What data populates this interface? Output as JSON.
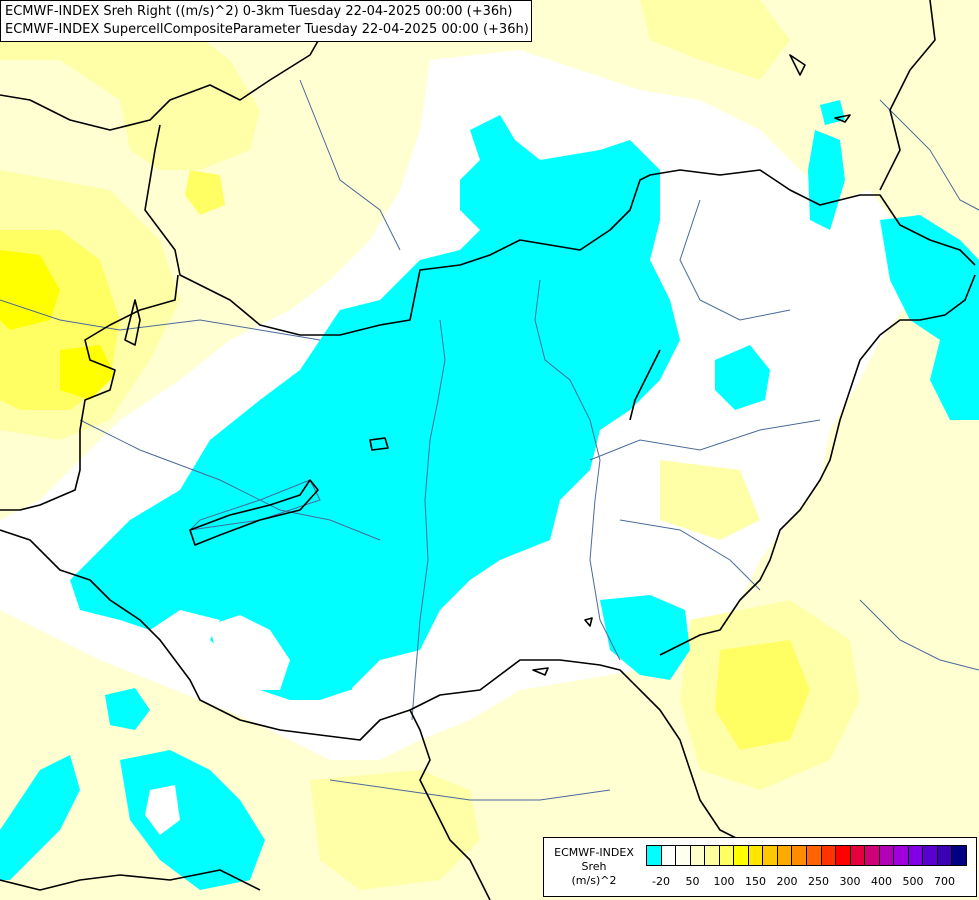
{
  "titles": {
    "line1": "ECMWF-INDEX Sreh Right ((m/s)^2) 0-3km Tuesday 22-04-2025 00:00 (+36h)",
    "line2": "ECMWF-INDEX SupercellCompositeParameter Tuesday 22-04-2025 00:00 (+36h)"
  },
  "legend": {
    "model": "ECMWF-INDEX",
    "variable": "Sreh",
    "unit": "(m/s)^2",
    "colors": [
      "#00ffff",
      "#ffffff",
      "#fffff0",
      "#ffffc8",
      "#ffffa0",
      "#ffff64",
      "#ffff00",
      "#ffe600",
      "#ffc800",
      "#ffaa00",
      "#ff8c00",
      "#ff6400",
      "#ff3200",
      "#ff0000",
      "#e6003c",
      "#d20078",
      "#b400b4",
      "#a000dc",
      "#8200e6",
      "#5a00d2",
      "#3c00b4",
      "#000080"
    ],
    "ticks": [
      "-20",
      "50",
      "100",
      "150",
      "200",
      "250",
      "300",
      "400",
      "500",
      "700"
    ]
  },
  "map": {
    "colors": {
      "white": "#ffffff",
      "pale_yellow": "#ffffd2",
      "light_yellow": "#ffffa8",
      "yellow": "#ffff64",
      "strong_yellow": "#ffff00",
      "cyan": "#00ffff",
      "border": "#000000",
      "river": "#4a6a9a"
    }
  }
}
